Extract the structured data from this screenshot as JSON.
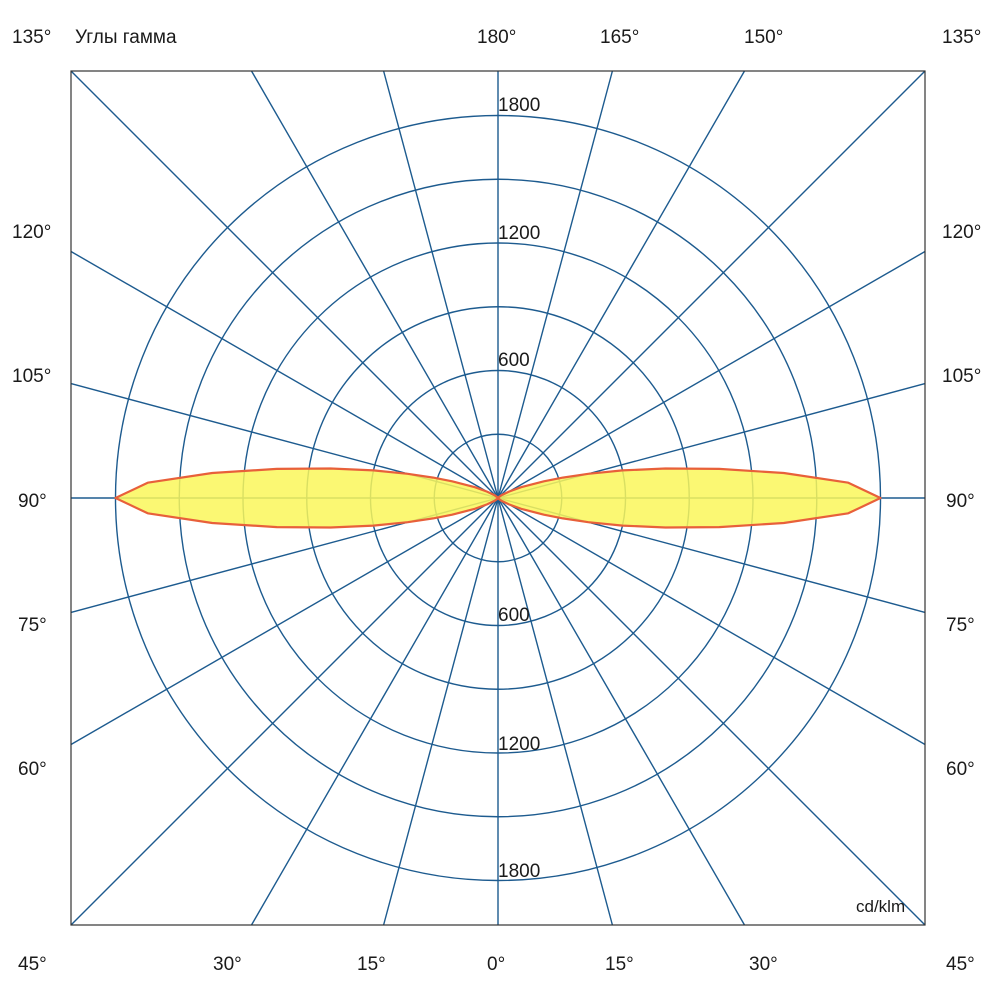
{
  "colors": {
    "grid": "#1d5b8f",
    "curve_fill": "#faf75a",
    "curve_stroke": "#e8603a",
    "frame": "#333333",
    "text": "#1a1a1a"
  },
  "labels": {
    "title": "Углы гамма",
    "unit": "cd/klm",
    "left": [
      "135°",
      "120°",
      "105°",
      "90°",
      "75°",
      "60°",
      "45°"
    ],
    "right": [
      "135°",
      "120°",
      "105°",
      "90°",
      "75°",
      "60°",
      "45°"
    ],
    "top": [
      "180°",
      "165°",
      "150°"
    ],
    "bottom": [
      "30°",
      "15°",
      "0°",
      "15°",
      "30°"
    ],
    "rings_upper": [
      "600",
      "1200",
      "1800"
    ],
    "rings_lower": [
      "600",
      "1200",
      "1800"
    ]
  },
  "chart_data": {
    "type": "polar",
    "grid": true,
    "radial_ticks": [
      600,
      1200,
      1800
    ],
    "radial_max": 2010,
    "angle_step_deg": 15,
    "series": [
      {
        "gamma": [
          0,
          10,
          20,
          30,
          40,
          50,
          60,
          65,
          70,
          72.5,
          75,
          77.5,
          80,
          82.5,
          85,
          87.5,
          90,
          92.5,
          95,
          97.5,
          100,
          102.5,
          105,
          107.5,
          110,
          115,
          120,
          130,
          140,
          150,
          160,
          170,
          180
        ],
        "intensity": [
          0,
          0,
          0,
          0,
          5,
          20,
          60,
          120,
          230,
          320,
          440,
          600,
          800,
          1050,
          1350,
          1650,
          1800,
          1650,
          1350,
          1050,
          800,
          600,
          440,
          320,
          230,
          120,
          60,
          20,
          5,
          0,
          0,
          0,
          0
        ]
      }
    ]
  }
}
